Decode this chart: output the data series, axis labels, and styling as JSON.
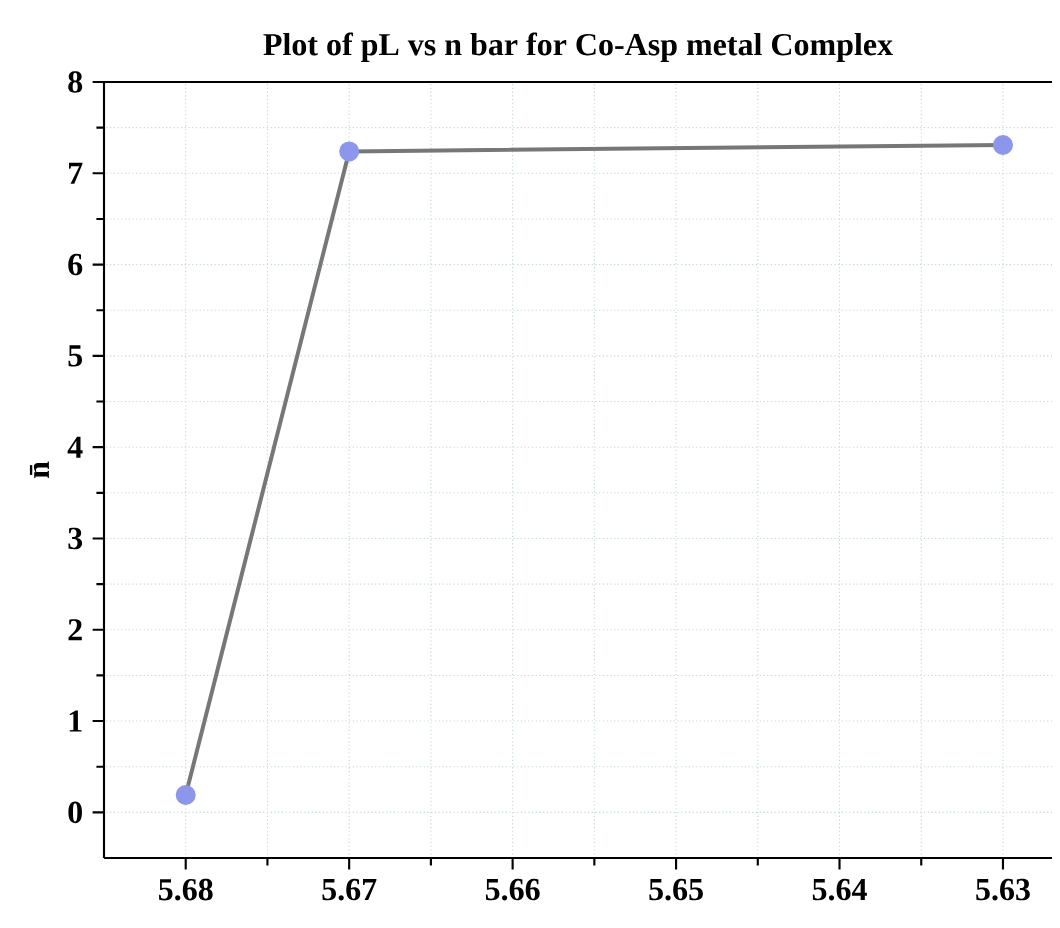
{
  "chart_data": {
    "type": "line",
    "title": "Plot of pL vs n bar for Co-Asp metal Complex",
    "ylabel": "n̄",
    "x": [
      5.68,
      5.67,
      5.63
    ],
    "series": [
      {
        "color": "#777777",
        "values": [
          0.19,
          7.24,
          7.31
        ]
      }
    ],
    "xlim": [
      5.685,
      5.627
    ],
    "ylim": [
      -0.5,
      8
    ],
    "xticks": [
      5.68,
      5.67,
      5.66,
      5.65,
      5.64,
      5.63
    ],
    "yticks": [
      0,
      1,
      2,
      3,
      4,
      5,
      6,
      7,
      8
    ],
    "grid": true,
    "marker": "circle",
    "line_style": "solid"
  }
}
